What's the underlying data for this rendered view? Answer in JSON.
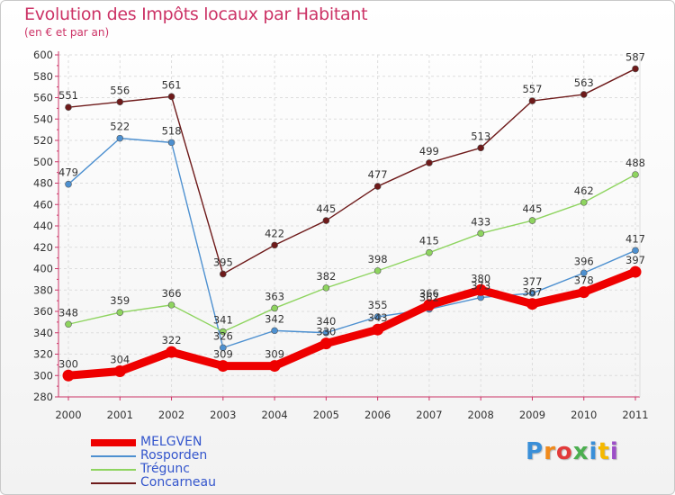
{
  "chart_data": {
    "type": "line",
    "title": "Evolution des Impôts locaux par Habitant",
    "subtitle": "(en € et par an)",
    "xlabel": "",
    "ylabel": "",
    "categories": [
      "2000",
      "2001",
      "2002",
      "2003",
      "2004",
      "2005",
      "2006",
      "2007",
      "2008",
      "2009",
      "2010",
      "2011"
    ],
    "ylim": [
      280,
      600
    ],
    "yticks": [
      280,
      300,
      320,
      340,
      360,
      380,
      400,
      420,
      440,
      460,
      480,
      500,
      520,
      540,
      560,
      580,
      600
    ],
    "grid": true,
    "legend_position": "bottom-left",
    "series": [
      {
        "name": "MELGVEN",
        "color": "#ee0000",
        "bold": true,
        "values": [
          300,
          304,
          322,
          309,
          309,
          330,
          343,
          366,
          380,
          367,
          378,
          397
        ]
      },
      {
        "name": "Rosporden",
        "color": "#4d90d0",
        "bold": false,
        "values": [
          479,
          522,
          518,
          326,
          342,
          340,
          355,
          362,
          373,
          377,
          396,
          417
        ]
      },
      {
        "name": "Trégunc",
        "color": "#8ed45f",
        "bold": false,
        "values": [
          348,
          359,
          366,
          341,
          363,
          382,
          398,
          415,
          433,
          445,
          462,
          488
        ]
      },
      {
        "name": "Concarneau",
        "color": "#6e1a1a",
        "bold": false,
        "values": [
          551,
          556,
          561,
          395,
          422,
          445,
          477,
          499,
          513,
          557,
          563,
          587
        ]
      }
    ]
  },
  "logo": {
    "letters": [
      "P",
      "r",
      "o",
      "x",
      "i",
      "t",
      "i"
    ],
    "colors": [
      "#3a8fd8",
      "#f08a1c",
      "#e23b3b",
      "#4caf50",
      "#3a8fd8",
      "#f5b800",
      "#9c4fc7"
    ]
  }
}
